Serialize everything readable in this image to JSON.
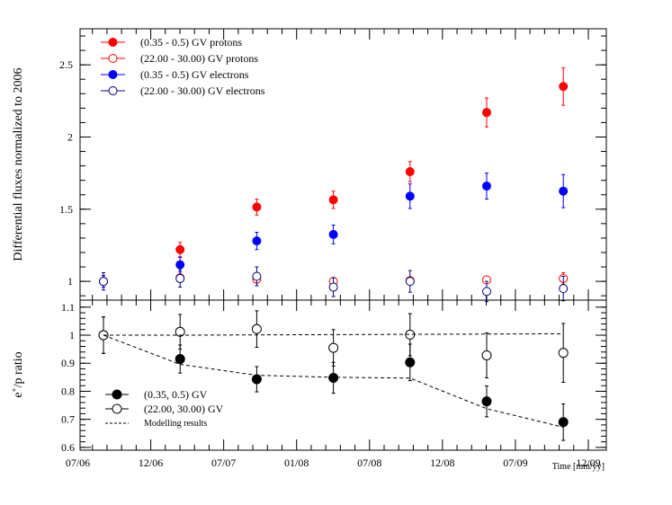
{
  "chart_data": [
    {
      "type": "scatter",
      "panel": "top",
      "ylabel": "Differential fluxes normalized to 2006",
      "ylim": [
        0.87,
        2.75
      ],
      "yticks": [
        1,
        1.5,
        2,
        2.5
      ],
      "ytick_labels": [
        "1",
        "1.5",
        "2",
        "2.5"
      ],
      "series": [
        {
          "name": "(0.35 - 0.5) GV protons",
          "color": "#ff0000",
          "filled": true,
          "points": [
            [
              0,
              1.0,
              0.04
            ],
            [
              1,
              1.22,
              0.05
            ],
            [
              2,
              1.515,
              0.055
            ],
            [
              3,
              1.565,
              0.06
            ],
            [
              4,
              1.76,
              0.07
            ],
            [
              5,
              2.17,
              0.1
            ],
            [
              6,
              2.35,
              0.13
            ]
          ]
        },
        {
          "name": "(22.00 - 30.00) GV protons",
          "color": "#ff0000",
          "filled": false,
          "points": [
            [
              0,
              1.0,
              0.02
            ],
            [
              1,
              1.025,
              0.02
            ],
            [
              2,
              1.015,
              0.02
            ],
            [
              3,
              1.0,
              0.02
            ],
            [
              4,
              1.005,
              0.02
            ],
            [
              5,
              1.01,
              0.02
            ],
            [
              6,
              1.02,
              0.04
            ]
          ]
        },
        {
          "name": "(0.35 - 0.5) GV electrons",
          "color": "#0000ff",
          "filled": true,
          "points": [
            [
              0,
              1.0,
              0.04
            ],
            [
              1,
              1.115,
              0.05
            ],
            [
              2,
              1.28,
              0.06
            ],
            [
              3,
              1.325,
              0.065
            ],
            [
              4,
              1.59,
              0.085
            ],
            [
              5,
              1.66,
              0.09
            ],
            [
              6,
              1.625,
              0.115
            ]
          ]
        },
        {
          "name": "(22.00 - 30.00) GV electrons",
          "color": "#000080",
          "filled": false,
          "points": [
            [
              0,
              1.0,
              0.06
            ],
            [
              1,
              1.02,
              0.06
            ],
            [
              2,
              1.035,
              0.065
            ],
            [
              3,
              0.96,
              0.065
            ],
            [
              4,
              1.0,
              0.075
            ],
            [
              5,
              0.93,
              0.07
            ],
            [
              6,
              0.95,
              0.085
            ]
          ]
        }
      ]
    },
    {
      "type": "scatter",
      "panel": "bottom",
      "ylabel": "e+/p ratio",
      "ylabel_main": "e",
      "ylabel_sup": "+",
      "ylabel_rest": "/p ratio",
      "ylim": [
        0.59,
        1.125
      ],
      "yticks": [
        0.6,
        0.7,
        0.8,
        0.9,
        1,
        1.1
      ],
      "ytick_labels": [
        "0.6",
        "0.7",
        "0.8",
        "0.9",
        "1",
        "1.1"
      ],
      "xlabel": "Time [mm/yy]",
      "x_tick_labels": [
        "07/06",
        "12/06",
        "07/07",
        "01/08",
        "07/08",
        "12/08",
        "07/09",
        "12/09"
      ],
      "series": [
        {
          "name": "(0.35, 0.5) GV",
          "color": "#000000",
          "filled": true,
          "points": [
            [
              0,
              1.0,
              0.065
            ],
            [
              1,
              0.915,
              0.05
            ],
            [
              2,
              0.843,
              0.045
            ],
            [
              3,
              0.848,
              0.055
            ],
            [
              4,
              0.903,
              0.065
            ],
            [
              5,
              0.764,
              0.055
            ],
            [
              6,
              0.69,
              0.065
            ]
          ]
        },
        {
          "name": "(22.00, 30.00) GV",
          "color": "#000000",
          "filled": false,
          "points": [
            [
              0,
              1.0,
              0.065
            ],
            [
              1,
              1.012,
              0.062
            ],
            [
              2,
              1.022,
              0.065
            ],
            [
              3,
              0.955,
              0.065
            ],
            [
              4,
              1.002,
              0.075
            ],
            [
              5,
              0.928,
              0.08
            ],
            [
              6,
              0.937,
              0.105
            ]
          ]
        },
        {
          "name": "Modelling results",
          "color": "#000000",
          "dashed": true,
          "lines": [
            [
              [
                0,
                1.0
              ],
              [
                1,
                0.896
              ],
              [
                2,
                0.857
              ],
              [
                3,
                0.85
              ],
              [
                4,
                0.847
              ],
              [
                5,
                0.738
              ],
              [
                6,
                0.672
              ]
            ],
            [
              [
                0,
                1.0
              ],
              [
                1,
                1.0
              ],
              [
                2,
                1.001
              ],
              [
                3,
                1.002
              ],
              [
                4,
                1.003
              ],
              [
                5,
                1.004
              ],
              [
                6,
                1.005
              ]
            ]
          ]
        }
      ]
    }
  ]
}
